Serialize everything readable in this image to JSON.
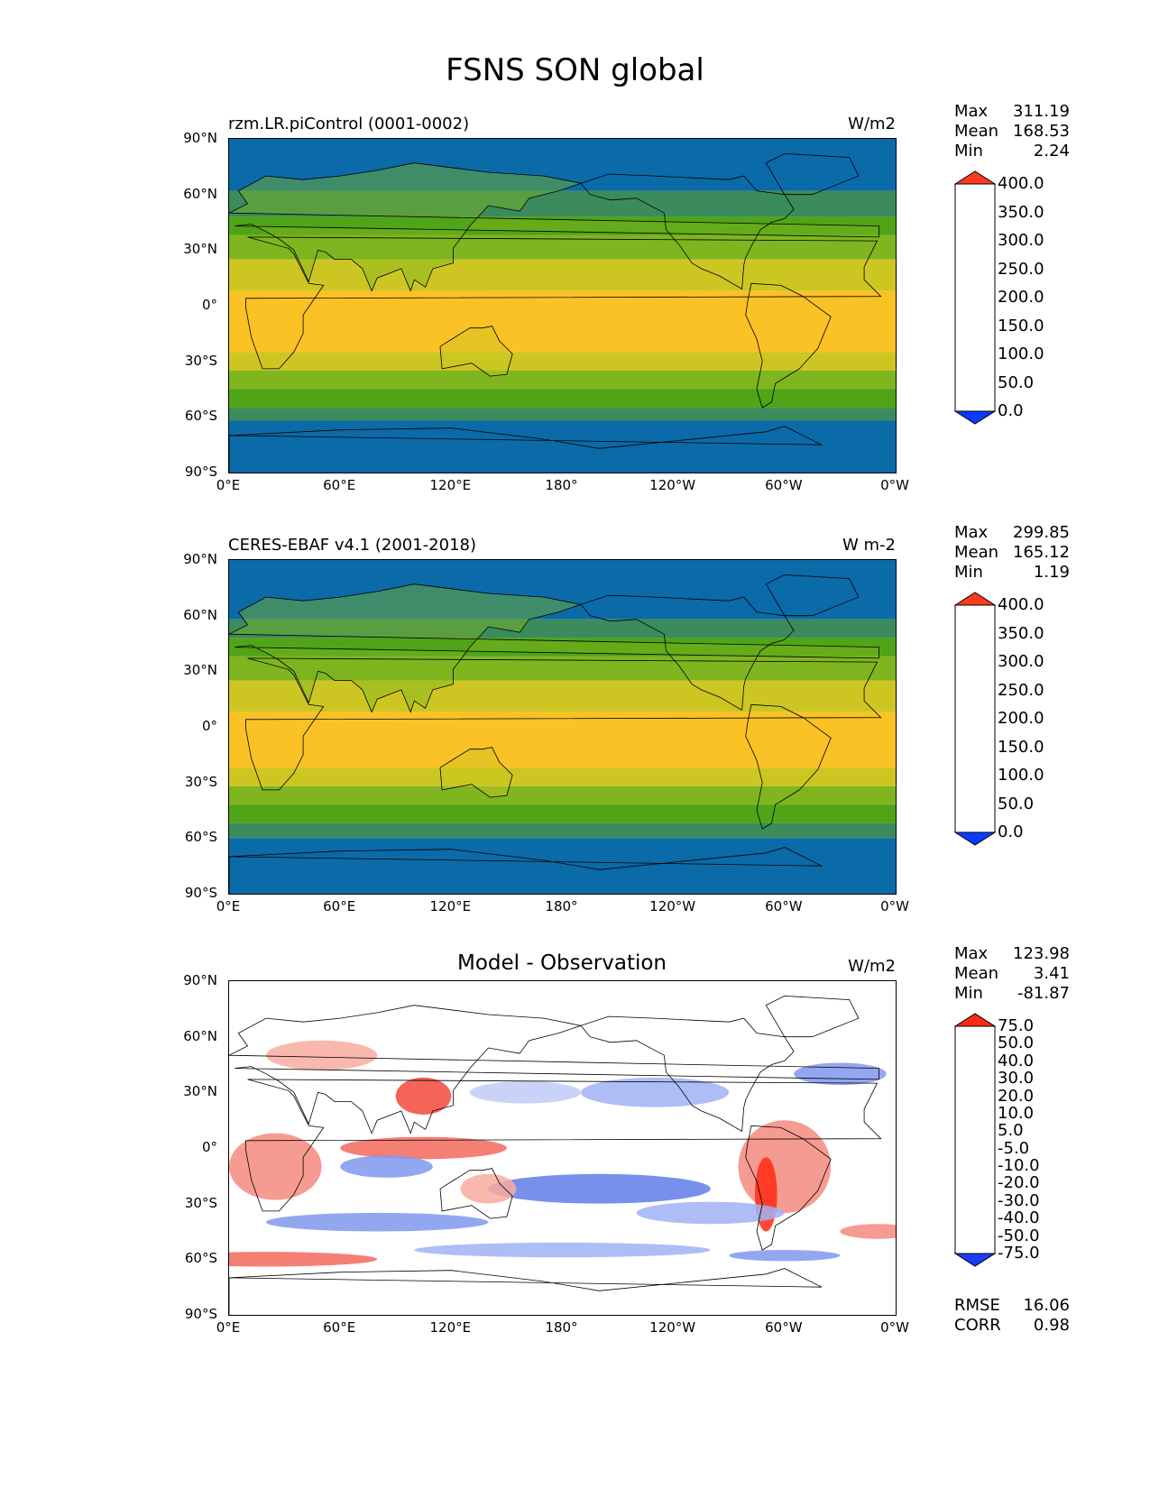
{
  "figure_title": "FSNS SON global",
  "y_ticks": [
    "90°N",
    "60°N",
    "30°N",
    "0°",
    "30°S",
    "60°S",
    "90°S"
  ],
  "x_ticks": [
    "0°E",
    "60°E",
    "120°E",
    "180°",
    "120°W",
    "60°W",
    "0°W"
  ],
  "colorbar_main": {
    "labels": [
      "400.0",
      "350.0",
      "300.0",
      "250.0",
      "200.0",
      "150.0",
      "100.0",
      "50.0",
      "0.0"
    ],
    "colors": [
      "#ff3b1e",
      "#fb6a0c",
      "#fb9b14",
      "#fbc226",
      "#cdc622",
      "#7fb51f",
      "#50a418",
      "#3b8b5d",
      "#0b6aa8",
      "#0a3cff"
    ]
  },
  "colorbar_diff": {
    "labels": [
      "75.0",
      "50.0",
      "40.0",
      "30.0",
      "20.0",
      "10.0",
      "5.0",
      "-5.0",
      "-10.0",
      "-20.0",
      "-30.0",
      "-40.0",
      "-50.0",
      "-75.0"
    ],
    "colors": [
      "#ff2a12",
      "#f14a3c",
      "#f3695c",
      "#f58a7e",
      "#f8ab9f",
      "#fbc9c0",
      "#fde3de",
      "#ffffff",
      "#dde3fb",
      "#bfcbf7",
      "#a0b2f3",
      "#8098ee",
      "#5f7de8",
      "#3c5fe4",
      "#1a3cff"
    ]
  },
  "panels": [
    {
      "title": "rzm.LR.piControl (0001-0002)",
      "title_style": "left",
      "units": "W/m2",
      "stats": {
        "max_label": "Max",
        "max": "311.19",
        "mean_label": "Mean",
        "mean": "168.53",
        "min_label": "Min",
        "min": "2.24"
      },
      "colorbar": "main"
    },
    {
      "title": "CERES-EBAF v4.1 (2001-2018)",
      "title_style": "left",
      "units": "W m-2",
      "stats": {
        "max_label": "Max",
        "max": "299.85",
        "mean_label": "Mean",
        "mean": "165.12",
        "min_label": "Min",
        "min": "1.19"
      },
      "colorbar": "main"
    },
    {
      "title": "Model - Observation",
      "title_style": "center",
      "units": "W/m2",
      "stats": {
        "max_label": "Max",
        "max": "123.98",
        "mean_label": "Mean",
        "mean": "3.41",
        "min_label": "Min",
        "min": "-81.87"
      },
      "colorbar": "diff",
      "rmse_label": "RMSE",
      "rmse": "16.06",
      "corr_label": "CORR",
      "corr": "0.98"
    }
  ]
}
